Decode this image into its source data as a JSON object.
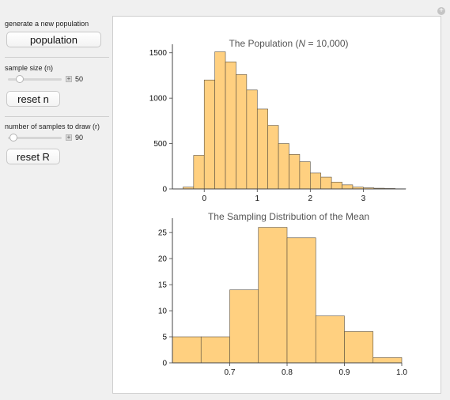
{
  "controls": {
    "population_label": "generate a new population",
    "population_button": "population",
    "sample_size_label": "sample size (n)",
    "sample_size_value": "50",
    "sample_size_fraction": 0.22,
    "reset_n_button": "reset n",
    "num_samples_label": "number of samples to draw (r)",
    "num_samples_value": "90",
    "num_samples_fraction": 0.1,
    "reset_r_button": "reset R"
  },
  "chart_data": [
    {
      "type": "bar",
      "title_prefix": "The Population (",
      "title_italic": "N",
      "title_suffix": " = 10,000)",
      "xlabel": "",
      "ylabel": "",
      "bin_width": 0.2,
      "bin_starts": [
        -0.4,
        -0.2,
        0.0,
        0.2,
        0.4,
        0.6,
        0.8,
        1.0,
        1.2,
        1.4,
        1.6,
        1.8,
        2.0,
        2.2,
        2.4,
        2.6,
        2.8,
        3.0,
        3.2,
        3.4,
        3.6
      ],
      "values": [
        20,
        370,
        1200,
        1510,
        1400,
        1260,
        1090,
        880,
        700,
        500,
        380,
        300,
        175,
        130,
        75,
        45,
        20,
        12,
        8,
        5,
        2
      ],
      "xlim": [
        -0.6,
        3.8
      ],
      "ylim": [
        0,
        1550
      ],
      "xticks": [
        "0",
        "1",
        "2",
        "3"
      ],
      "xtick_values": [
        0,
        1,
        2,
        3
      ],
      "yticks": [
        "0",
        "500",
        "1000",
        "1500"
      ],
      "ytick_values": [
        0,
        500,
        1000,
        1500
      ]
    },
    {
      "type": "bar",
      "title": "The Sampling Distribution of the Mean",
      "xlabel": "",
      "ylabel": "",
      "bin_width": 0.05,
      "bin_starts": [
        0.6,
        0.65,
        0.7,
        0.75,
        0.8,
        0.85,
        0.9,
        0.95
      ],
      "values": [
        5,
        5,
        14,
        26,
        24,
        9,
        6,
        1
      ],
      "xlim": [
        0.6,
        1.0
      ],
      "ylim": [
        0,
        27
      ],
      "xticks": [
        "0.7",
        "0.8",
        "0.9",
        "1.0"
      ],
      "xtick_values": [
        0.7,
        0.8,
        0.9,
        1.0
      ],
      "yticks": [
        "0",
        "5",
        "10",
        "15",
        "20",
        "25"
      ],
      "ytick_values": [
        0,
        5,
        10,
        15,
        20,
        25
      ]
    }
  ]
}
